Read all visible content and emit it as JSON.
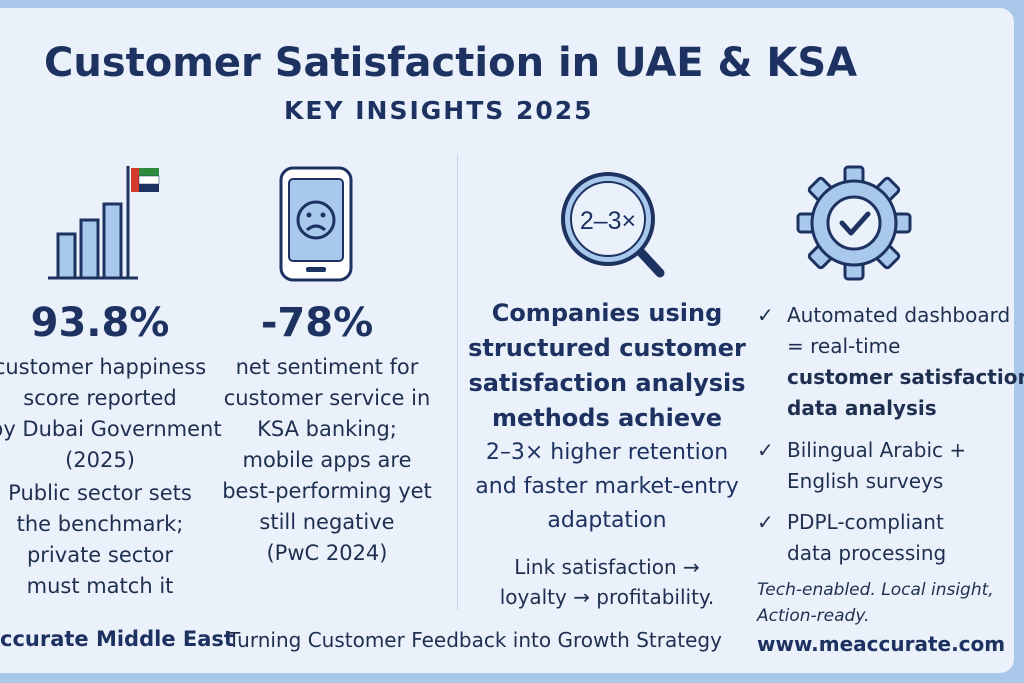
{
  "header": {
    "title": "Customer Satisfaction in UAE & KSA",
    "subtitle": "KEY INSIGHTS 2025"
  },
  "col1": {
    "icon": "bar-chart-flag-icon",
    "stat": "93.8%",
    "desc": [
      "customer happiness",
      "score reported",
      "by Dubai Government",
      "(2025)"
    ],
    "note": [
      "Public sector sets",
      "the benchmark;",
      "private sector",
      "must match it"
    ]
  },
  "col2": {
    "icon": "sad-phone-icon",
    "stat": "-78%",
    "desc": [
      "net sentiment for",
      "customer service in",
      "KSA banking;",
      "mobile apps are",
      "best-performing yet",
      "still negative",
      "(PwC 2024)"
    ]
  },
  "col3": {
    "icon_text": "2–3×",
    "headline": [
      "Companies using",
      "structured customer",
      "satisfaction analysis",
      "methods achieve"
    ],
    "result": [
      "2–3× higher retention",
      "and faster market-entry",
      "adaptation"
    ],
    "link": [
      "Link satisfaction →",
      "loyalty → profitability."
    ]
  },
  "col4": {
    "icon": "gear-check-icon",
    "item1": [
      "Automated dashboard",
      "= real-time"
    ],
    "item1_strong": [
      "customer satisfaction",
      "data analysis"
    ],
    "item2": [
      "Bilingual Arabic +",
      "English surveys"
    ],
    "item3": [
      "PDPL-compliant",
      "data processing"
    ],
    "tagline": [
      "Tech-enabled. Local insight,",
      "Action-ready."
    ],
    "url": "www.meaccurate.com"
  },
  "footer": {
    "brand": "ccurate Middle East",
    "slogan": "Turning Customer Feedback into Growth Strategy"
  },
  "colors": {
    "navy": "#1d3260",
    "icon_fill": "#a8c8ec",
    "icon_stroke": "#1d3260",
    "background": "#eaf1fb",
    "flag_green": "#2e8b3e",
    "flag_red": "#d23a2e"
  }
}
